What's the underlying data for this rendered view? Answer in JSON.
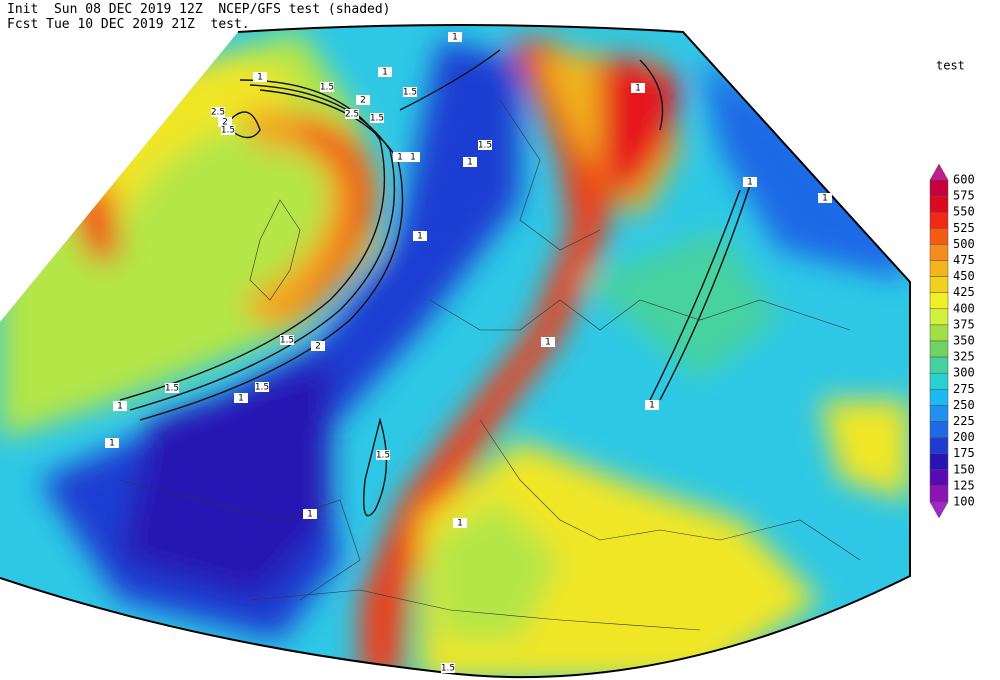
{
  "header": {
    "line1": "Init  Sun 08 DEC 2019 12Z  NCEP/GFS test (shaded)",
    "line2": "Fcst Tue 10 DEC 2019 21Z  test."
  },
  "colorbar": {
    "title": "test",
    "levels": [
      600,
      575,
      550,
      525,
      500,
      475,
      450,
      425,
      400,
      375,
      350,
      325,
      300,
      275,
      250,
      225,
      200,
      175,
      150,
      125,
      100
    ],
    "colors": [
      "#c0208f",
      "#c8003c",
      "#dc0a1e",
      "#f02814",
      "#f55a14",
      "#f58c1e",
      "#f5b41e",
      "#f0d21e",
      "#f0f028",
      "#d2f03c",
      "#a0e046",
      "#6ed264",
      "#46d2a0",
      "#28d2d2",
      "#1eb9f0",
      "#1e91f0",
      "#1e69e6",
      "#1e3cd2",
      "#2814b4",
      "#5a0ab4",
      "#8c14b4",
      "#a028c8"
    ]
  },
  "contour_labels": [
    "1",
    "1",
    "1",
    "1.5",
    "1.5",
    "2",
    "2.5",
    "1.5",
    "2.5",
    "2",
    "1.5",
    "1",
    "1",
    "1.5",
    "1",
    "1",
    "1",
    "1",
    "1",
    "1.5",
    "2",
    "1.5",
    "1.5",
    "1",
    "1",
    "1",
    "1.5",
    "1",
    "1",
    "1",
    "1",
    "1.5"
  ]
}
